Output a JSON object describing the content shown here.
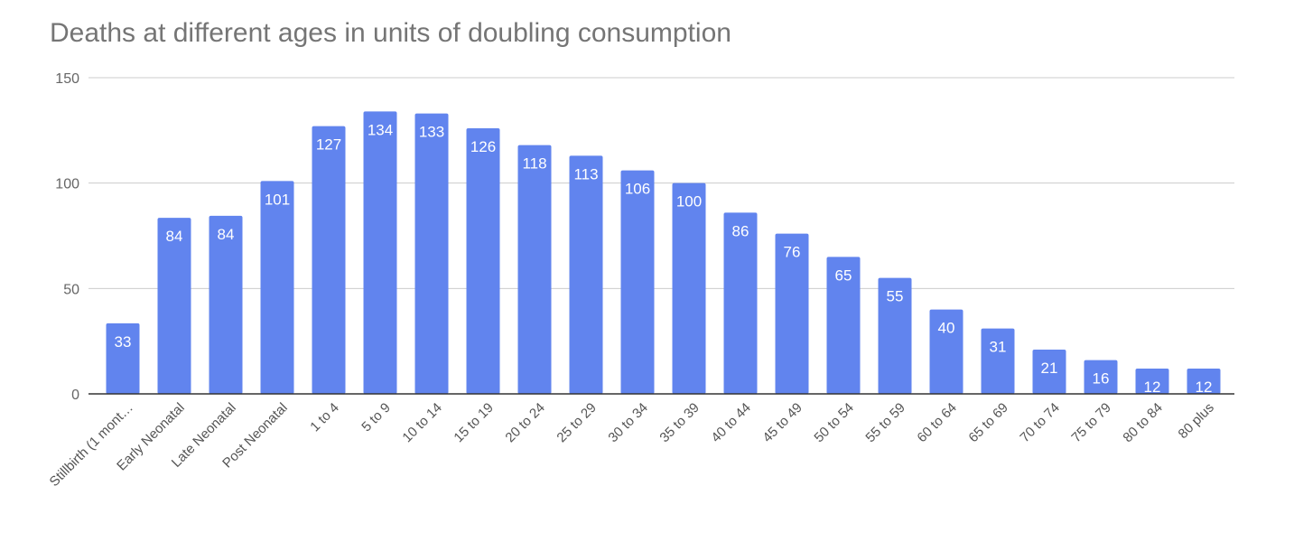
{
  "chart_data": {
    "type": "bar",
    "title": "Deaths at different ages in units of doubling consumption",
    "xlabel": "",
    "ylabel": "",
    "ylim": [
      0,
      150
    ],
    "yticks": [
      0,
      50,
      100,
      150
    ],
    "grid": true,
    "legend": "none",
    "bar_color": "#6184ee",
    "categories": [
      "Stillbirth (1 mont…",
      "Early Neonatal",
      "Late Neonatal",
      "Post Neonatal",
      "1 to 4",
      "5 to 9",
      "10 to 14",
      "15 to 19",
      "20 to 24",
      "25 to 29",
      "30 to 34",
      "35 to 39",
      "40 to 44",
      "45 to 49",
      "50 to 54",
      "55 to 59",
      "60 to 64",
      "65 to 69",
      "70 to 74",
      "75 to 79",
      "80 to 84",
      "80 plus"
    ],
    "values": [
      33.5,
      83.5,
      84.5,
      101,
      127,
      134,
      133,
      126,
      118,
      113,
      106,
      100,
      86,
      76,
      65,
      55,
      40,
      31,
      21,
      16,
      12,
      12
    ],
    "data_labels": [
      "33",
      "84",
      "84",
      "101",
      "127",
      "134",
      "133",
      "126",
      "118",
      "113",
      "106",
      "100",
      "86",
      "76",
      "65",
      "55",
      "40",
      "31",
      "21",
      "16",
      "12",
      "12"
    ]
  }
}
